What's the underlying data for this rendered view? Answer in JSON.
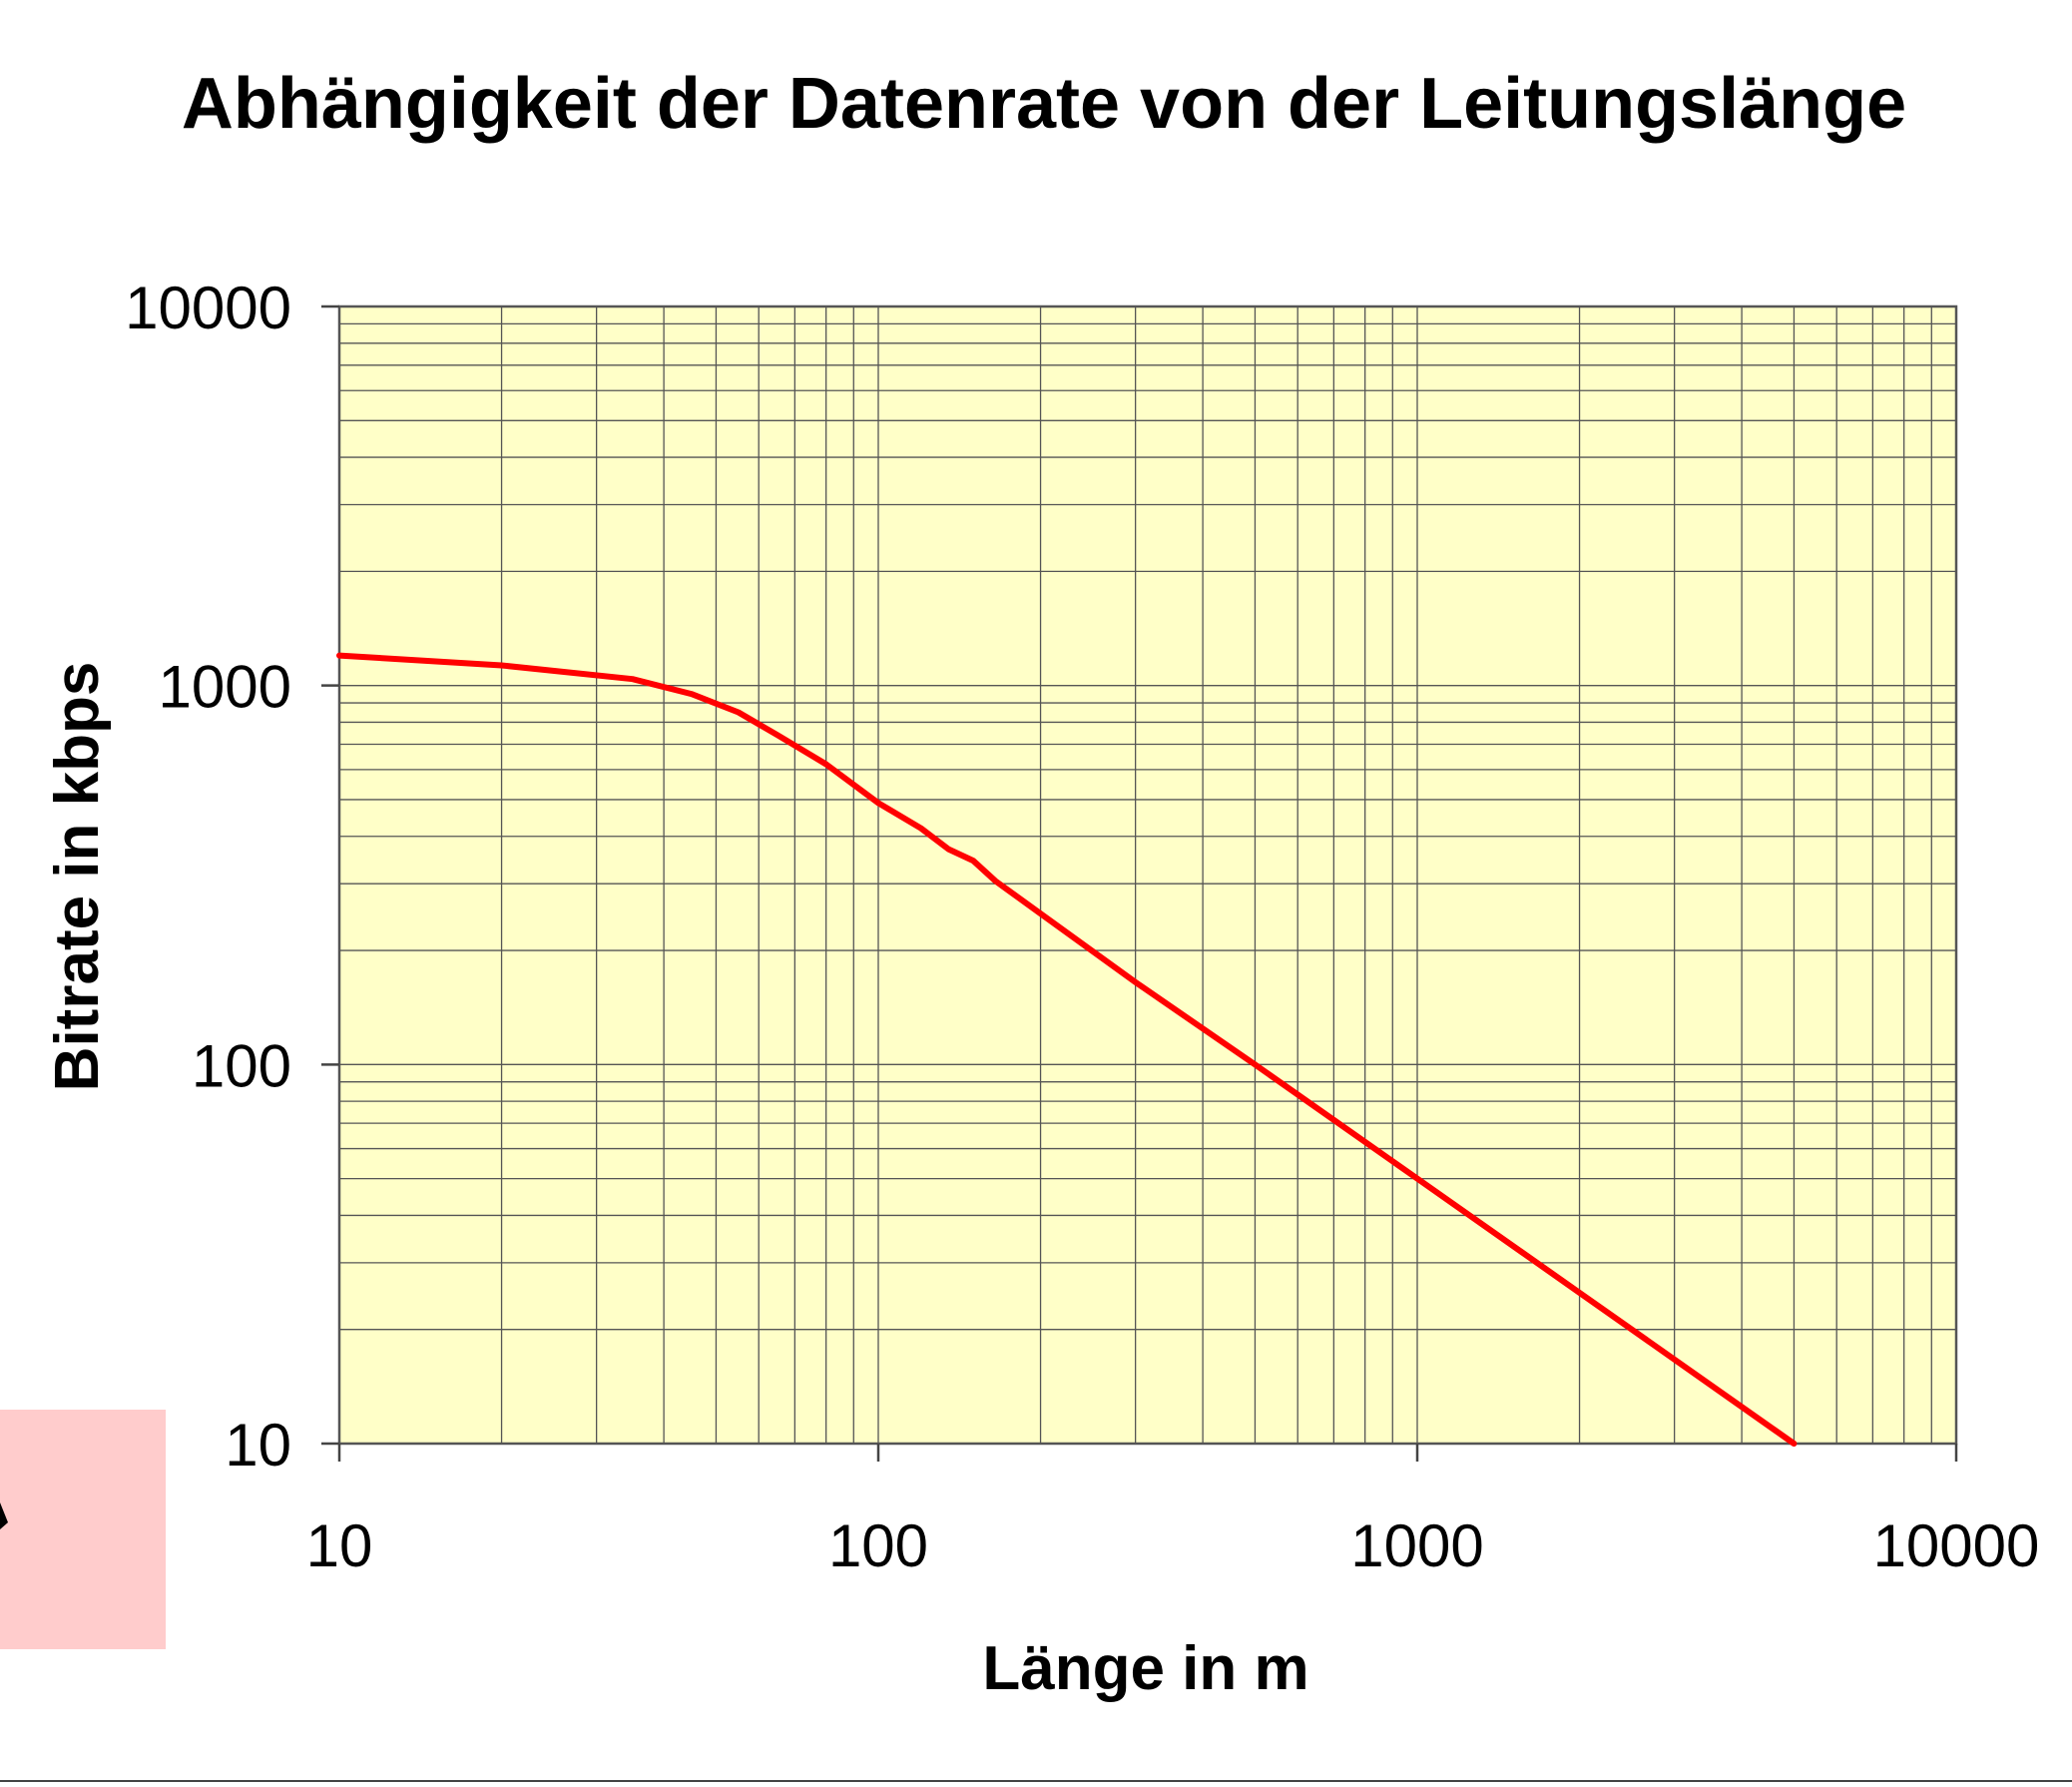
{
  "chart_data": {
    "type": "line",
    "title": "Abhängigkeit der Datenrate von der Leitungslänge",
    "xlabel": "Länge in m",
    "ylabel": "Bitrate in kbps",
    "xscale": "log",
    "yscale": "log",
    "xlim": [
      10,
      10000
    ],
    "ylim": [
      10,
      10000
    ],
    "xticks": [
      "10",
      "100",
      "1000",
      "10000"
    ],
    "yticks": [
      "10",
      "100",
      "1000",
      "10000"
    ],
    "grid": true,
    "legend": "none",
    "series": [
      {
        "color": "#ff0000",
        "x": [
          10,
          20,
          35,
          45,
          55,
          65,
          80,
          100,
          120,
          135,
          150,
          165,
          200,
          300,
          500,
          1000,
          2000,
          5000
        ],
        "y": [
          1200,
          1130,
          1040,
          950,
          850,
          740,
          620,
          490,
          420,
          370,
          345,
          305,
          250,
          165,
          100,
          50,
          25,
          10
        ]
      }
    ]
  },
  "colors": {
    "plot_background": "#ffffc8",
    "grid": "#555555",
    "page_background": "#ffffff",
    "decoration_box": "#ffcccc"
  }
}
